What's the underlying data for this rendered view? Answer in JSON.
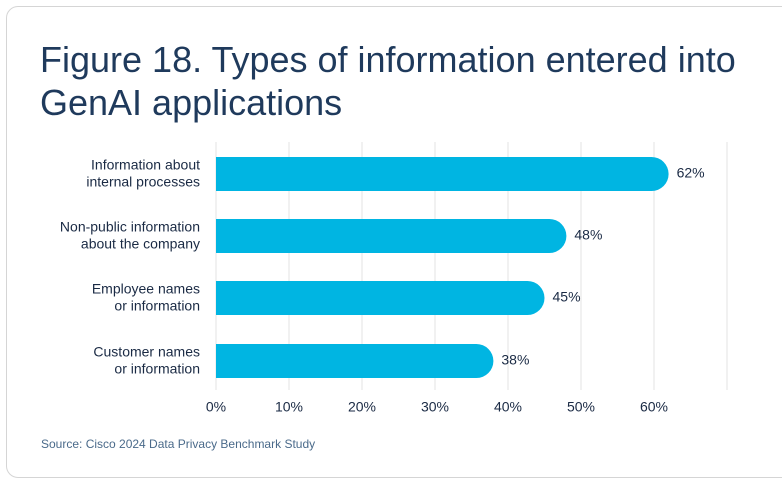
{
  "figure": {
    "title": "Figure 18. Types of information entered into GenAI applications",
    "source": "Source: Cisco 2024 Data Privacy Benchmark Study"
  },
  "chart_data": {
    "type": "bar",
    "orientation": "horizontal",
    "title": "Figure 18. Types of information entered into GenAI applications",
    "categories": [
      [
        "Information about",
        "internal processes"
      ],
      [
        "Non-public information",
        "about the company"
      ],
      [
        "Employee names",
        "or information"
      ],
      [
        "Customer names",
        "or information"
      ]
    ],
    "values": [
      62,
      48,
      45,
      38
    ],
    "value_labels": [
      "62%",
      "48%",
      "45%",
      "38%"
    ],
    "xlim": [
      0,
      70
    ],
    "ticks": [
      0,
      10,
      20,
      30,
      40,
      50,
      60
    ],
    "tick_labels": [
      "0%",
      "10%",
      "20%",
      "30%",
      "40%",
      "50%",
      "60%"
    ],
    "grid": "vertical",
    "bar_color": "#00b5e2"
  }
}
